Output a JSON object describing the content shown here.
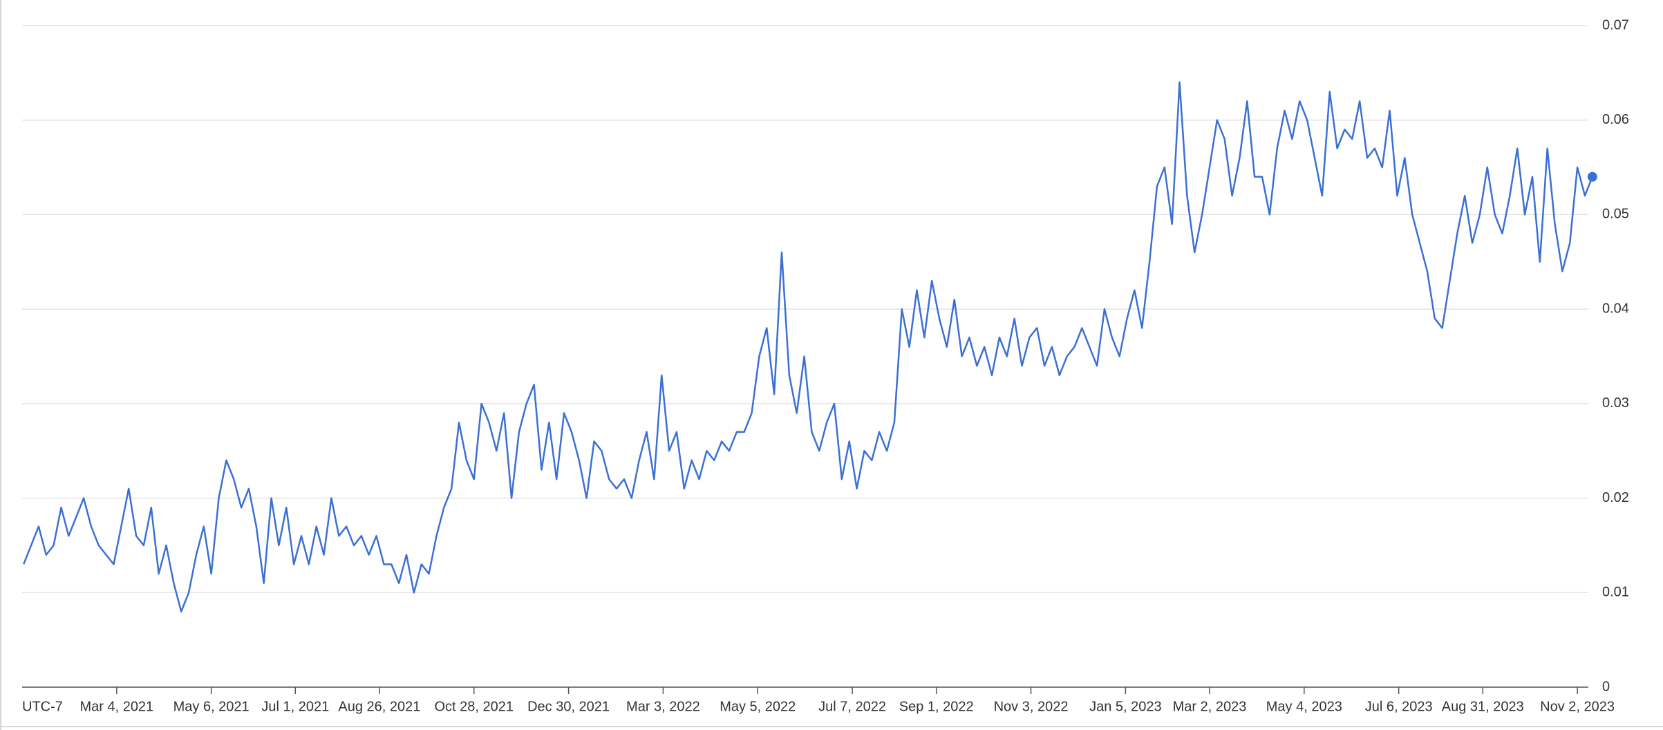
{
  "chart_data": {
    "type": "line",
    "timezone_label": "UTC-7",
    "color": "#3b70d3",
    "grid": true,
    "y_axis_side": "right",
    "xlim": [
      "2020-12-31",
      "2023-11-13"
    ],
    "ylim": [
      0,
      0.07
    ],
    "yticks": [
      0,
      0.01,
      0.02,
      0.03,
      0.04,
      0.05,
      0.06,
      0.07
    ],
    "xticks": [
      {
        "value": "2021-03-04",
        "label": "Mar 4, 2021"
      },
      {
        "value": "2021-05-06",
        "label": "May 6, 2021"
      },
      {
        "value": "2021-07-01",
        "label": "Jul 1, 2021"
      },
      {
        "value": "2021-08-26",
        "label": "Aug 26, 2021"
      },
      {
        "value": "2021-10-28",
        "label": "Oct 28, 2021"
      },
      {
        "value": "2021-12-30",
        "label": "Dec 30, 2021"
      },
      {
        "value": "2022-03-03",
        "label": "Mar 3, 2022"
      },
      {
        "value": "2022-05-05",
        "label": "May 5, 2022"
      },
      {
        "value": "2022-07-07",
        "label": "Jul 7, 2022"
      },
      {
        "value": "2022-09-01",
        "label": "Sep 1, 2022"
      },
      {
        "value": "2022-11-03",
        "label": "Nov 3, 2022"
      },
      {
        "value": "2023-01-05",
        "label": "Jan 5, 2023"
      },
      {
        "value": "2023-03-02",
        "label": "Mar 2, 2023"
      },
      {
        "value": "2023-05-04",
        "label": "May 4, 2023"
      },
      {
        "value": "2023-07-06",
        "label": "Jul 6, 2023"
      },
      {
        "value": "2023-08-31",
        "label": "Aug 31, 2023"
      },
      {
        "value": "2023-11-02",
        "label": "Nov 2, 2023"
      }
    ],
    "x": [
      "2021-01-01",
      "2021-01-06",
      "2021-01-11",
      "2021-01-16",
      "2021-01-21",
      "2021-01-26",
      "2021-01-31",
      "2021-02-05",
      "2021-02-10",
      "2021-02-15",
      "2021-02-20",
      "2021-02-25",
      "2021-03-02",
      "2021-03-07",
      "2021-03-12",
      "2021-03-17",
      "2021-03-22",
      "2021-03-27",
      "2021-04-01",
      "2021-04-06",
      "2021-04-11",
      "2021-04-16",
      "2021-04-21",
      "2021-04-26",
      "2021-05-01",
      "2021-05-06",
      "2021-05-11",
      "2021-05-16",
      "2021-05-21",
      "2021-05-26",
      "2021-05-31",
      "2021-06-05",
      "2021-06-10",
      "2021-06-15",
      "2021-06-20",
      "2021-06-25",
      "2021-06-30",
      "2021-07-05",
      "2021-07-10",
      "2021-07-15",
      "2021-07-20",
      "2021-07-25",
      "2021-07-30",
      "2021-08-04",
      "2021-08-09",
      "2021-08-14",
      "2021-08-19",
      "2021-08-24",
      "2021-08-29",
      "2021-09-03",
      "2021-09-08",
      "2021-09-13",
      "2021-09-18",
      "2021-09-23",
      "2021-09-28",
      "2021-10-03",
      "2021-10-08",
      "2021-10-13",
      "2021-10-18",
      "2021-10-23",
      "2021-10-28",
      "2021-11-02",
      "2021-11-07",
      "2021-11-12",
      "2021-11-17",
      "2021-11-22",
      "2021-11-27",
      "2021-12-02",
      "2021-12-07",
      "2021-12-12",
      "2021-12-17",
      "2021-12-22",
      "2021-12-27",
      "2022-01-01",
      "2022-01-06",
      "2022-01-11",
      "2022-01-16",
      "2022-01-21",
      "2022-01-26",
      "2022-01-31",
      "2022-02-05",
      "2022-02-10",
      "2022-02-15",
      "2022-02-20",
      "2022-02-25",
      "2022-03-02",
      "2022-03-07",
      "2022-03-12",
      "2022-03-17",
      "2022-03-22",
      "2022-03-27",
      "2022-04-01",
      "2022-04-06",
      "2022-04-11",
      "2022-04-16",
      "2022-04-21",
      "2022-04-26",
      "2022-05-01",
      "2022-05-06",
      "2022-05-11",
      "2022-05-16",
      "2022-05-21",
      "2022-05-26",
      "2022-05-31",
      "2022-06-05",
      "2022-06-10",
      "2022-06-15",
      "2022-06-20",
      "2022-06-25",
      "2022-06-30",
      "2022-07-05",
      "2022-07-10",
      "2022-07-15",
      "2022-07-20",
      "2022-07-25",
      "2022-07-30",
      "2022-08-04",
      "2022-08-09",
      "2022-08-14",
      "2022-08-19",
      "2022-08-24",
      "2022-08-29",
      "2022-09-03",
      "2022-09-08",
      "2022-09-13",
      "2022-09-18",
      "2022-09-23",
      "2022-09-28",
      "2022-10-03",
      "2022-10-08",
      "2022-10-13",
      "2022-10-18",
      "2022-10-23",
      "2022-10-28",
      "2022-11-02",
      "2022-11-07",
      "2022-11-12",
      "2022-11-17",
      "2022-11-22",
      "2022-11-27",
      "2022-12-02",
      "2022-12-07",
      "2022-12-12",
      "2022-12-17",
      "2022-12-22",
      "2022-12-27",
      "2023-01-01",
      "2023-01-06",
      "2023-01-11",
      "2023-01-16",
      "2023-01-21",
      "2023-01-26",
      "2023-01-31",
      "2023-02-05",
      "2023-02-10",
      "2023-02-15",
      "2023-02-20",
      "2023-02-25",
      "2023-03-02",
      "2023-03-07",
      "2023-03-12",
      "2023-03-17",
      "2023-03-22",
      "2023-03-27",
      "2023-04-01",
      "2023-04-06",
      "2023-04-11",
      "2023-04-16",
      "2023-04-21",
      "2023-04-26",
      "2023-05-01",
      "2023-05-06",
      "2023-05-11",
      "2023-05-16",
      "2023-05-21",
      "2023-05-26",
      "2023-05-31",
      "2023-06-05",
      "2023-06-10",
      "2023-06-15",
      "2023-06-20",
      "2023-06-25",
      "2023-06-30",
      "2023-07-05",
      "2023-07-10",
      "2023-07-15",
      "2023-07-20",
      "2023-07-25",
      "2023-07-30",
      "2023-08-04",
      "2023-08-09",
      "2023-08-14",
      "2023-08-19",
      "2023-08-24",
      "2023-08-29",
      "2023-09-03",
      "2023-09-08",
      "2023-09-13",
      "2023-09-18",
      "2023-09-23",
      "2023-09-28",
      "2023-10-03",
      "2023-10-08",
      "2023-10-13",
      "2023-10-18",
      "2023-10-23",
      "2023-10-28",
      "2023-11-02",
      "2023-11-07",
      "2023-11-12"
    ],
    "values": [
      0.013,
      0.015,
      0.017,
      0.014,
      0.015,
      0.019,
      0.016,
      0.018,
      0.02,
      0.017,
      0.015,
      0.014,
      0.013,
      0.017,
      0.021,
      0.016,
      0.015,
      0.019,
      0.012,
      0.015,
      0.011,
      0.008,
      0.01,
      0.014,
      0.017,
      0.012,
      0.02,
      0.024,
      0.022,
      0.019,
      0.021,
      0.017,
      0.011,
      0.02,
      0.015,
      0.019,
      0.013,
      0.016,
      0.013,
      0.017,
      0.014,
      0.02,
      0.016,
      0.017,
      0.015,
      0.016,
      0.014,
      0.016,
      0.013,
      0.013,
      0.011,
      0.014,
      0.01,
      0.013,
      0.012,
      0.016,
      0.019,
      0.021,
      0.028,
      0.024,
      0.022,
      0.03,
      0.028,
      0.025,
      0.029,
      0.02,
      0.027,
      0.03,
      0.032,
      0.023,
      0.028,
      0.022,
      0.029,
      0.027,
      0.024,
      0.02,
      0.026,
      0.025,
      0.022,
      0.021,
      0.022,
      0.02,
      0.024,
      0.027,
      0.022,
      0.033,
      0.025,
      0.027,
      0.021,
      0.024,
      0.022,
      0.025,
      0.024,
      0.026,
      0.025,
      0.027,
      0.027,
      0.029,
      0.035,
      0.038,
      0.031,
      0.046,
      0.033,
      0.029,
      0.035,
      0.027,
      0.025,
      0.028,
      0.03,
      0.022,
      0.026,
      0.021,
      0.025,
      0.024,
      0.027,
      0.025,
      0.028,
      0.04,
      0.036,
      0.042,
      0.037,
      0.043,
      0.039,
      0.036,
      0.041,
      0.035,
      0.037,
      0.034,
      0.036,
      0.033,
      0.037,
      0.035,
      0.039,
      0.034,
      0.037,
      0.038,
      0.034,
      0.036,
      0.033,
      0.035,
      0.036,
      0.038,
      0.036,
      0.034,
      0.04,
      0.037,
      0.035,
      0.039,
      0.042,
      0.038,
      0.045,
      0.053,
      0.055,
      0.049,
      0.064,
      0.052,
      0.046,
      0.05,
      0.055,
      0.06,
      0.058,
      0.052,
      0.056,
      0.062,
      0.054,
      0.054,
      0.05,
      0.057,
      0.061,
      0.058,
      0.062,
      0.06,
      0.056,
      0.052,
      0.063,
      0.057,
      0.059,
      0.058,
      0.062,
      0.056,
      0.057,
      0.055,
      0.061,
      0.052,
      0.056,
      0.05,
      0.047,
      0.044,
      0.039,
      0.038,
      0.043,
      0.048,
      0.052,
      0.047,
      0.05,
      0.055,
      0.05,
      0.048,
      0.052,
      0.057,
      0.05,
      0.054,
      0.045,
      0.057,
      0.049,
      0.044,
      0.047,
      0.055,
      0.052,
      0.054
    ]
  }
}
